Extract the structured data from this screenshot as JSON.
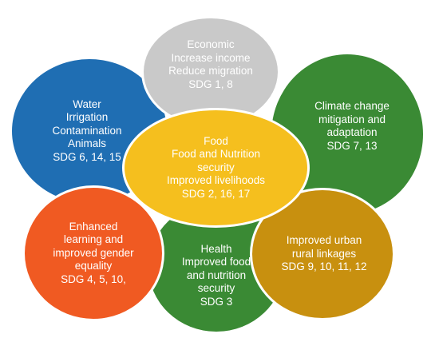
{
  "diagram": {
    "circles": {
      "economic": {
        "color": "#c9c9c9",
        "lines": [
          "Economic",
          "Increase income",
          "Reduce migration",
          "SDG 1, 8"
        ]
      },
      "water": {
        "color": "#1f6eb3",
        "lines": [
          "Water",
          "Irrigation",
          "Contamination",
          "Animals",
          "SDG 6, 14, 15"
        ]
      },
      "climate": {
        "color": "#3a8a34",
        "lines": [
          "Climate change",
          "mitigation and",
          "adaptation",
          "SDG 7, 13"
        ]
      },
      "health": {
        "color": "#3a8a34",
        "lines": [
          "Health",
          "Improved food",
          "and nutrition",
          "security",
          "SDG 3"
        ]
      },
      "learning": {
        "color": "#f05a22",
        "lines": [
          "Enhanced",
          "learning and",
          "improved gender",
          "equality",
          "SDG 4, 5, 10,"
        ]
      },
      "urban": {
        "color": "#c8900f",
        "lines": [
          "Improved urban",
          "rural linkages",
          "SDG 9, 10, 11, 12"
        ]
      },
      "food": {
        "color": "#f5bf1e",
        "lines": [
          "Food",
          "Food and Nutrition",
          "security",
          "Improved livelihoods",
          "SDG 2, 16, 17"
        ]
      }
    }
  }
}
